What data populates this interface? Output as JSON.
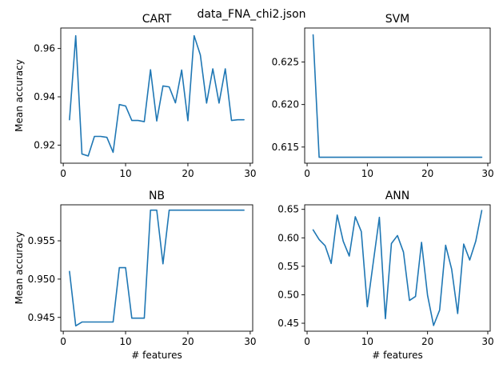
{
  "figure": {
    "suptitle": "data_FNA_chi2.json",
    "line_color": "#1f77b4"
  },
  "chart_data": [
    {
      "type": "line",
      "title": "CART",
      "xlabel": "",
      "ylabel": "Mean accuracy",
      "xlim": [
        -0.4,
        30.4
      ],
      "ylim": [
        0.9125,
        0.9685
      ],
      "xticks": [
        0,
        10,
        20,
        30
      ],
      "yticks": [
        0.92,
        0.94,
        0.96
      ],
      "ytick_labels": [
        "0.92",
        "0.94",
        "0.96"
      ],
      "grid": false,
      "x": [
        1,
        2,
        3,
        4,
        5,
        6,
        7,
        8,
        9,
        10,
        11,
        12,
        13,
        14,
        15,
        16,
        17,
        18,
        19,
        20,
        21,
        22,
        23,
        24,
        25,
        26,
        27,
        28,
        29
      ],
      "y": [
        0.9305,
        0.9653,
        0.9163,
        0.9155,
        0.9236,
        0.9236,
        0.9232,
        0.917,
        0.9368,
        0.9362,
        0.9302,
        0.9302,
        0.9297,
        0.9512,
        0.93,
        0.9445,
        0.9441,
        0.9375,
        0.9511,
        0.9301,
        0.9653,
        0.9573,
        0.9374,
        0.9516,
        0.9374,
        0.9516,
        0.9302,
        0.9305,
        0.9305
      ]
    },
    {
      "type": "line",
      "title": "SVM",
      "xlabel": "",
      "ylabel": "",
      "xlim": [
        -0.4,
        30.4
      ],
      "ylim": [
        0.6131,
        0.629
      ],
      "xticks": [
        0,
        10,
        20,
        30
      ],
      "yticks": [
        0.615,
        0.62,
        0.625
      ],
      "ytick_labels": [
        "0.615",
        "0.620",
        "0.625"
      ],
      "grid": false,
      "x": [
        1,
        2,
        3,
        4,
        5,
        6,
        7,
        8,
        9,
        10,
        11,
        12,
        13,
        14,
        15,
        16,
        17,
        18,
        19,
        20,
        21,
        22,
        23,
        24,
        25,
        26,
        27,
        28,
        29
      ],
      "y": [
        0.6282,
        0.6138,
        0.6138,
        0.6138,
        0.6138,
        0.6138,
        0.6138,
        0.6138,
        0.6138,
        0.6138,
        0.6138,
        0.6138,
        0.6138,
        0.6138,
        0.6138,
        0.6138,
        0.6138,
        0.6138,
        0.6138,
        0.6138,
        0.6138,
        0.6138,
        0.6138,
        0.6138,
        0.6138,
        0.6138,
        0.6138,
        0.6138,
        0.6138
      ]
    },
    {
      "type": "line",
      "title": "NB",
      "xlabel": "# features",
      "ylabel": "Mean accuracy",
      "xlim": [
        -0.4,
        30.4
      ],
      "ylim": [
        0.9432,
        0.9597
      ],
      "xticks": [
        0,
        10,
        20,
        30
      ],
      "yticks": [
        0.945,
        0.95,
        0.955
      ],
      "ytick_labels": [
        "0.945",
        "0.950",
        "0.955"
      ],
      "grid": false,
      "x": [
        1,
        2,
        3,
        4,
        5,
        6,
        7,
        8,
        9,
        10,
        11,
        12,
        13,
        14,
        15,
        16,
        17,
        18,
        19,
        20,
        21,
        22,
        23,
        24,
        25,
        26,
        27,
        28,
        29
      ],
      "y": [
        0.951,
        0.9439,
        0.9444,
        0.9444,
        0.9444,
        0.9444,
        0.9444,
        0.9444,
        0.9515,
        0.9515,
        0.9449,
        0.9449,
        0.9449,
        0.959,
        0.959,
        0.952,
        0.959,
        0.959,
        0.959,
        0.959,
        0.959,
        0.959,
        0.959,
        0.959,
        0.959,
        0.959,
        0.959,
        0.959,
        0.959
      ]
    },
    {
      "type": "line",
      "title": "ANN",
      "xlabel": "# features",
      "ylabel": "",
      "xlim": [
        -0.4,
        30.4
      ],
      "ylim": [
        0.436,
        0.658
      ],
      "xticks": [
        0,
        10,
        20,
        30
      ],
      "yticks": [
        0.45,
        0.5,
        0.55,
        0.6,
        0.65
      ],
      "ytick_labels": [
        "0.45",
        "0.50",
        "0.55",
        "0.60",
        "0.65"
      ],
      "grid": false,
      "x": [
        1,
        2,
        3,
        4,
        5,
        6,
        7,
        8,
        9,
        10,
        11,
        12,
        13,
        14,
        15,
        16,
        17,
        18,
        19,
        20,
        21,
        22,
        23,
        24,
        25,
        26,
        27,
        28,
        29
      ],
      "y": [
        0.614,
        0.597,
        0.586,
        0.555,
        0.64,
        0.594,
        0.568,
        0.637,
        0.611,
        0.479,
        0.558,
        0.636,
        0.458,
        0.59,
        0.604,
        0.575,
        0.49,
        0.497,
        0.592,
        0.499,
        0.446,
        0.473,
        0.587,
        0.545,
        0.467,
        0.589,
        0.561,
        0.594,
        0.648
      ]
    }
  ]
}
